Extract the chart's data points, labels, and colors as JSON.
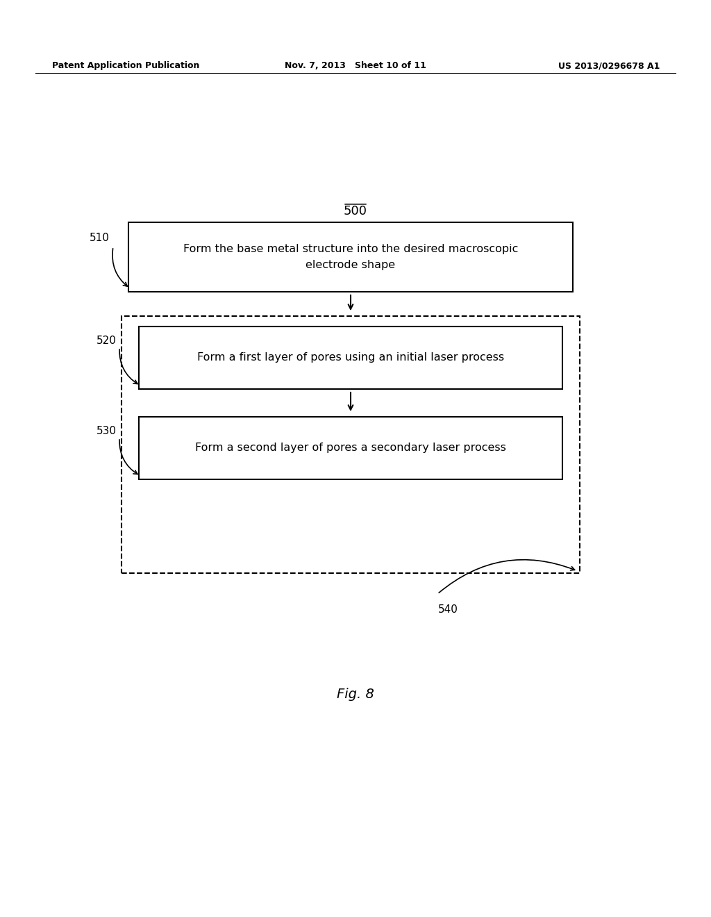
{
  "bg_color": "#ffffff",
  "header_left": "Patent Application Publication",
  "header_mid": "Nov. 7, 2013   Sheet 10 of 11",
  "header_right": "US 2013/0296678 A1",
  "fig_label": "Fig. 8",
  "diagram_label": "500",
  "box1_label": "510",
  "box2_label": "520",
  "box3_label": "530",
  "dashed_label": "540",
  "box1_text": "Form the base metal structure into the desired macroscopic\nelectrode shape",
  "box2_text": "Form a first layer of pores using an initial laser process",
  "box3_text": "Form a second layer of pores a secondary laser process",
  "font_family": "DejaVu Sans"
}
